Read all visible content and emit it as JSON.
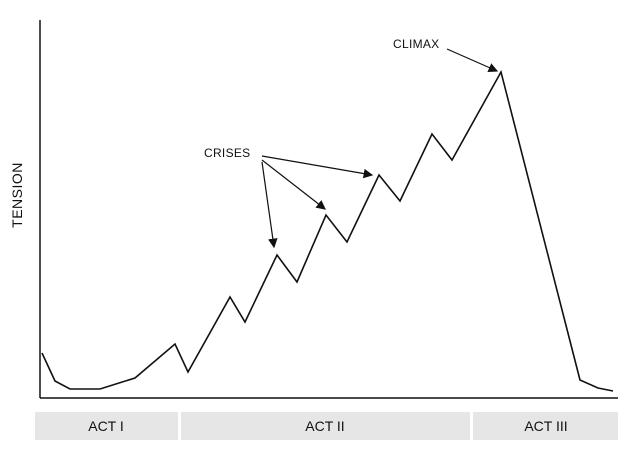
{
  "diagram": {
    "y_axis_label": "TENSION",
    "annotations": {
      "crises_label": "CRISES",
      "climax_label": "CLIMAX"
    },
    "acts": [
      {
        "label": "ACT I"
      },
      {
        "label": "ACT II"
      },
      {
        "label": "ACT III"
      }
    ],
    "colors": {
      "line": "#111111",
      "band": "#e6e6e6"
    }
  }
}
